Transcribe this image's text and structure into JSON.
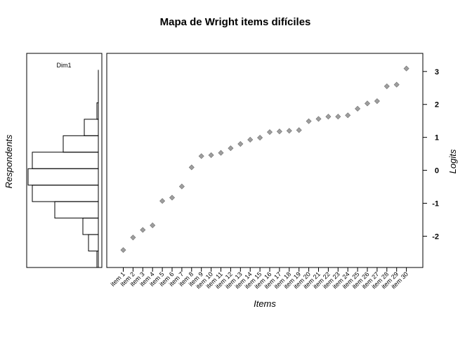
{
  "chart_data": {
    "type": "scatter",
    "title": "Mapa de Wright items difíciles",
    "xlabel": "Items",
    "ylabel": "Logits",
    "left_ylabel": "Respondents",
    "panel_label": "Dim1",
    "ylim": [
      -2.95,
      3.55
    ],
    "yticks": [
      -2,
      -1,
      0,
      1,
      2,
      3
    ],
    "grid": false,
    "legend": "none",
    "point_color": "#9e9e9e",
    "categories": [
      "item 1",
      "item 2",
      "item 3",
      "item 4",
      "item 5",
      "item 6",
      "item 7",
      "item 8",
      "item 9",
      "item 10",
      "item 11",
      "item 12",
      "item 13",
      "item 14",
      "item 15",
      "item 16",
      "item 17",
      "item 18",
      "item 19",
      "item 20",
      "item 21",
      "item 22",
      "item 23",
      "item 24",
      "item 25",
      "item 26",
      "item 27",
      "item 28",
      "item 29",
      "item 30"
    ],
    "values": [
      -2.42,
      -2.04,
      -1.81,
      -1.67,
      -0.93,
      -0.83,
      -0.49,
      0.09,
      0.43,
      0.46,
      0.53,
      0.67,
      0.8,
      0.93,
      0.99,
      1.16,
      1.18,
      1.2,
      1.22,
      1.49,
      1.56,
      1.63,
      1.63,
      1.67,
      1.87,
      2.03,
      2.1,
      2.55,
      2.6,
      3.09
    ],
    "histogram": {
      "bin_edges": [
        -2.95,
        -2.45,
        -1.95,
        -1.45,
        -0.95,
        -0.45,
        0.05,
        0.55,
        1.05,
        1.55,
        2.05,
        2.55,
        3.05
      ],
      "counts": [
        0.5,
        3.5,
        5.5,
        15.5,
        23.5,
        25,
        23.5,
        12.5,
        5,
        0.5,
        0,
        0
      ]
    }
  }
}
